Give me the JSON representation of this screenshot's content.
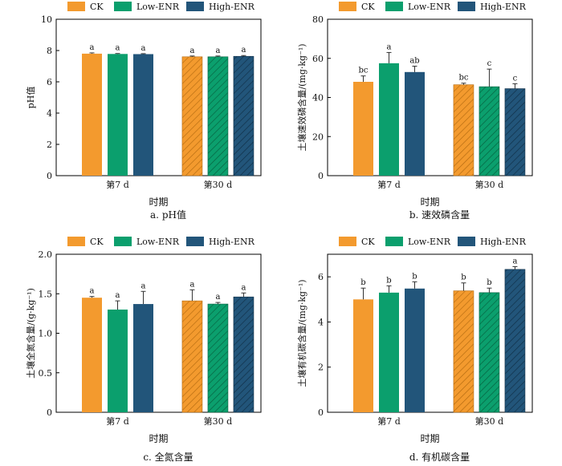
{
  "chart_data": [
    {
      "type": "bar",
      "panel_caption": "a.  pH值",
      "xlabel": "时期",
      "ylabel": "pH值",
      "ylim": [
        0,
        10
      ],
      "yticks": [
        0,
        2,
        4,
        6,
        8,
        10
      ],
      "categories": [
        "第7 d",
        "第30 d"
      ],
      "series": [
        {
          "name": "CK",
          "values": [
            7.8,
            7.6
          ],
          "errors": [
            0.05,
            0.05
          ],
          "letters": [
            "a",
            "a"
          ]
        },
        {
          "name": "Low-ENR",
          "values": [
            7.78,
            7.6
          ],
          "errors": [
            0.03,
            0.05
          ],
          "letters": [
            "a",
            "a"
          ]
        },
        {
          "name": "High-ENR",
          "values": [
            7.77,
            7.63
          ],
          "errors": [
            0.03,
            0.05
          ],
          "letters": [
            "a",
            "a"
          ]
        }
      ]
    },
    {
      "type": "bar",
      "panel_caption": "b.  速效磷含量",
      "xlabel": "时期",
      "ylabel": "土壤速效磷含量/(mg·kg⁻¹)",
      "ylim": [
        0,
        80
      ],
      "yticks": [
        0,
        20,
        40,
        60,
        80
      ],
      "categories": [
        "第7 d",
        "第30 d"
      ],
      "series": [
        {
          "name": "CK",
          "values": [
            48,
            46.5
          ],
          "errors": [
            3,
            0.8
          ],
          "letters": [
            "bc",
            "bc"
          ]
        },
        {
          "name": "Low-ENR",
          "values": [
            57.5,
            45.5
          ],
          "errors": [
            5.5,
            9
          ],
          "letters": [
            "a",
            "c"
          ]
        },
        {
          "name": "High-ENR",
          "values": [
            53,
            44.5
          ],
          "errors": [
            3,
            2.5
          ],
          "letters": [
            "ab",
            "c"
          ]
        }
      ]
    },
    {
      "type": "bar",
      "panel_caption": "c.  全氮含量",
      "xlabel": "时期",
      "ylabel": "土壤全氮含量/(g·kg⁻¹)",
      "ylim": [
        0,
        2.0
      ],
      "yticks": [
        0,
        0.5,
        1.0,
        1.5,
        2.0
      ],
      "ytick_labels": [
        "0",
        "0.5",
        "1.0",
        "1.5",
        "2.0"
      ],
      "categories": [
        "第7 d",
        "第30 d"
      ],
      "series": [
        {
          "name": "CK",
          "values": [
            1.45,
            1.41
          ],
          "errors": [
            0.015,
            0.14
          ],
          "letters": [
            "a",
            "a"
          ]
        },
        {
          "name": "Low-ENR",
          "values": [
            1.3,
            1.37
          ],
          "errors": [
            0.11,
            0.02
          ],
          "letters": [
            "a",
            "a"
          ]
        },
        {
          "name": "High-ENR",
          "values": [
            1.37,
            1.46
          ],
          "errors": [
            0.16,
            0.05
          ],
          "letters": [
            "a",
            "a"
          ]
        }
      ]
    },
    {
      "type": "bar",
      "panel_caption": "d.  有机碳含量",
      "xlabel": "时期",
      "ylabel": "土壤有机碳含量/(mg·kg⁻¹)",
      "ylim": [
        0,
        7
      ],
      "yticks": [
        0,
        2,
        4,
        6
      ],
      "categories": [
        "第7 d",
        "第30 d"
      ],
      "series": [
        {
          "name": "CK",
          "values": [
            5.0,
            5.38
          ],
          "errors": [
            0.5,
            0.35
          ],
          "letters": [
            "b",
            "b"
          ]
        },
        {
          "name": "Low-ENR",
          "values": [
            5.3,
            5.3
          ],
          "errors": [
            0.3,
            0.2
          ],
          "letters": [
            "b",
            "b"
          ]
        },
        {
          "name": "High-ENR",
          "values": [
            5.48,
            6.33
          ],
          "errors": [
            0.3,
            0.12
          ],
          "letters": [
            "b",
            "a"
          ]
        }
      ]
    }
  ],
  "colors": {
    "CK": "#f39a2e",
    "Low-ENR": "#0b9f6d",
    "High-ENR": "#22557a"
  },
  "hatched_category": "第30 d"
}
